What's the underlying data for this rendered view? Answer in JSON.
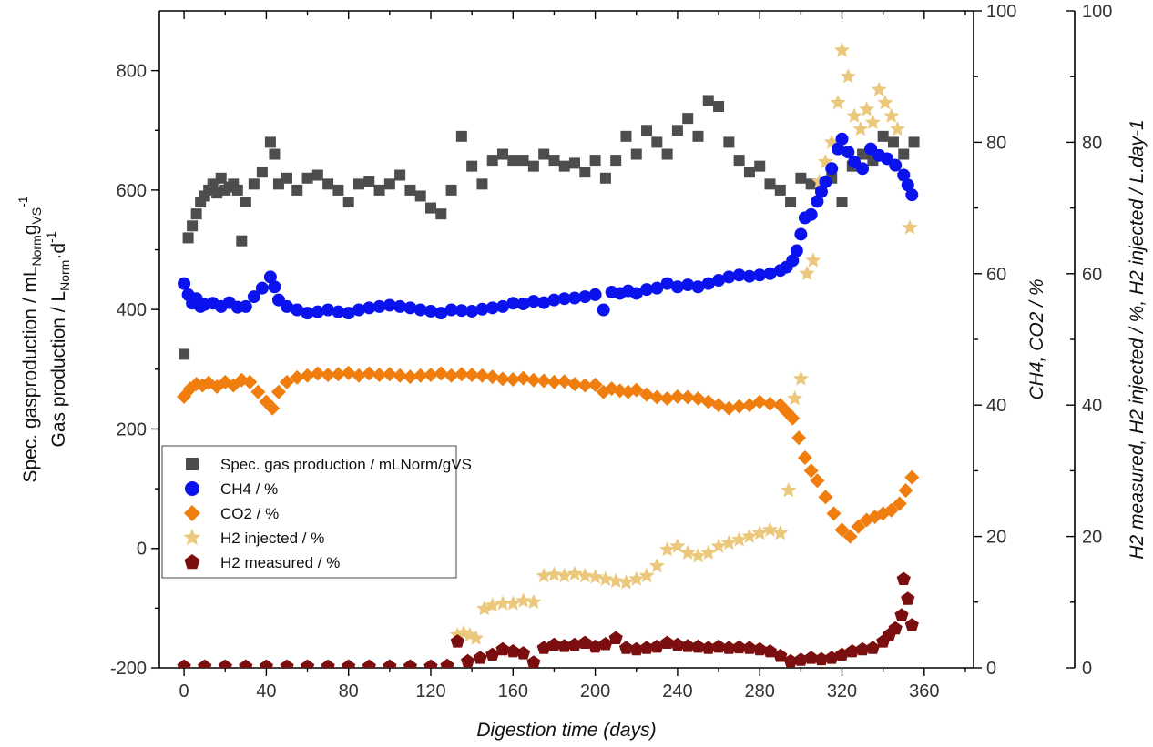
{
  "chart_data": {
    "type": "scatter",
    "xlabel": "Digestion time (days)",
    "x_ticks": [
      "0",
      "40",
      "80",
      "120",
      "160",
      "200",
      "240",
      "280",
      "320",
      "360"
    ],
    "xlim": [
      -12,
      384
    ],
    "left_axis": {
      "label_line1": "Spec. gasproduction  / mL",
      "label_line1_sub": "Norm",
      "label_line1_tail": "g",
      "label_line1_tail_sub": "VS",
      "label_line1_sup": "-1",
      "label_line2": "Gas production / L",
      "label_line2_sub": "Norm",
      "label_line2_tail": "·d",
      "label_line2_sup": "-1",
      "ylim": [
        -200,
        900
      ],
      "ticks": [
        "-200",
        "0",
        "200",
        "400",
        "600",
        "800"
      ]
    },
    "right_axis_1": {
      "label": "CH4,  CO2 / %",
      "ylim": [
        0,
        100
      ],
      "ticks": [
        "0",
        "20",
        "40",
        "60",
        "80",
        "100"
      ]
    },
    "right_axis_2": {
      "label": "H2 measured, H2 injected / %, H2 injected / L.day-1",
      "ylim": [
        0,
        100
      ],
      "ticks": [
        "0",
        "20",
        "40",
        "60",
        "80",
        "100"
      ]
    },
    "legend_position": "lower-left",
    "series": [
      {
        "name": "Spec. gas production / mLNorm/gVS",
        "axis": "left",
        "color": "#4d4d4d",
        "marker": "square",
        "x": [
          0,
          2,
          4,
          6,
          8,
          10,
          12,
          14,
          16,
          18,
          20,
          22,
          24,
          26,
          28,
          30,
          34,
          38,
          42,
          44,
          46,
          50,
          55,
          60,
          65,
          70,
          75,
          80,
          85,
          90,
          95,
          100,
          105,
          110,
          115,
          120,
          125,
          130,
          135,
          140,
          145,
          150,
          155,
          160,
          165,
          170,
          175,
          180,
          185,
          190,
          195,
          200,
          205,
          210,
          215,
          220,
          225,
          230,
          235,
          240,
          245,
          250,
          255,
          260,
          265,
          270,
          275,
          280,
          285,
          290,
          295,
          300,
          305,
          310,
          315,
          320,
          325,
          330,
          335,
          340,
          345,
          350,
          355
        ],
        "y": [
          325,
          520,
          540,
          560,
          580,
          590,
          600,
          610,
          595,
          620,
          600,
          605,
          610,
          600,
          515,
          580,
          610,
          630,
          680,
          660,
          610,
          620,
          600,
          620,
          625,
          610,
          600,
          580,
          610,
          615,
          600,
          610,
          625,
          600,
          590,
          570,
          560,
          600,
          690,
          640,
          610,
          650,
          660,
          650,
          650,
          640,
          660,
          650,
          640,
          645,
          630,
          650,
          620,
          650,
          690,
          660,
          700,
          680,
          660,
          700,
          720,
          690,
          750,
          740,
          680,
          650,
          630,
          640,
          610,
          600,
          580,
          620,
          610,
          600,
          620,
          580,
          640,
          660,
          650,
          690,
          680,
          660,
          680
        ]
      },
      {
        "name": "CH4 / %",
        "axis": "right1",
        "color": "#0a12ee",
        "marker": "circle",
        "x": [
          0,
          2,
          4,
          6,
          8,
          10,
          14,
          18,
          22,
          26,
          30,
          34,
          38,
          42,
          44,
          46,
          50,
          55,
          60,
          65,
          70,
          75,
          80,
          85,
          90,
          95,
          100,
          105,
          110,
          115,
          120,
          125,
          130,
          135,
          140,
          145,
          150,
          155,
          160,
          165,
          170,
          175,
          180,
          185,
          190,
          195,
          200,
          204,
          208,
          212,
          216,
          220,
          225,
          230,
          235,
          240,
          245,
          250,
          255,
          260,
          265,
          270,
          275,
          280,
          285,
          290,
          293,
          296,
          298,
          300,
          302,
          305,
          308,
          310,
          312,
          315,
          318,
          320,
          323,
          326,
          330,
          334,
          338,
          342,
          346,
          350,
          352,
          354
        ],
        "y": [
          58.5,
          56.8,
          55.5,
          56.2,
          55.0,
          55.3,
          55.5,
          55.0,
          55.6,
          54.9,
          55.0,
          56.5,
          57.8,
          59.5,
          58.0,
          56.0,
          55.0,
          54.5,
          54.0,
          54.2,
          54.5,
          54.2,
          54.0,
          54.5,
          54.8,
          55.0,
          55.2,
          55.0,
          54.8,
          54.5,
          54.3,
          54.0,
          54.5,
          54.4,
          54.3,
          54.6,
          54.8,
          55.0,
          55.5,
          55.4,
          55.8,
          55.6,
          56.0,
          56.2,
          56.3,
          56.5,
          56.8,
          54.5,
          57.2,
          57.0,
          57.4,
          57.0,
          57.6,
          57.8,
          58.5,
          58.0,
          58.3,
          58.0,
          58.5,
          59.0,
          59.5,
          59.8,
          59.6,
          59.8,
          60.0,
          60.5,
          61.0,
          62.0,
          63.5,
          66.0,
          68.5,
          69.0,
          71.0,
          72.5,
          74.0,
          76.0,
          79.0,
          80.5,
          78.5,
          77.0,
          76.0,
          79.0,
          78.0,
          77.5,
          76.5,
          75.0,
          73.5,
          72.0
        ]
      },
      {
        "name": "CO2 / %",
        "axis": "right1",
        "color": "#f07e0f",
        "marker": "diamond",
        "x": [
          0,
          3,
          6,
          9,
          12,
          16,
          20,
          24,
          28,
          32,
          36,
          40,
          43,
          46,
          50,
          55,
          60,
          65,
          70,
          75,
          80,
          85,
          90,
          95,
          100,
          105,
          110,
          115,
          120,
          125,
          130,
          135,
          140,
          145,
          150,
          155,
          160,
          165,
          170,
          175,
          180,
          185,
          190,
          195,
          200,
          204,
          208,
          212,
          216,
          220,
          225,
          230,
          235,
          240,
          245,
          250,
          255,
          260,
          265,
          270,
          275,
          280,
          285,
          290,
          293,
          296,
          299,
          302,
          305,
          308,
          312,
          316,
          320,
          324,
          328,
          332,
          336,
          340,
          344,
          348,
          351,
          354
        ],
        "y": [
          41.3,
          42.5,
          43.2,
          43.0,
          43.4,
          42.8,
          43.5,
          43.0,
          43.8,
          43.5,
          42.0,
          40.5,
          39.5,
          42.0,
          43.5,
          44.2,
          44.5,
          44.8,
          44.6,
          44.7,
          44.9,
          44.5,
          44.8,
          44.6,
          44.7,
          44.5,
          44.3,
          44.5,
          44.6,
          44.8,
          44.5,
          44.7,
          44.6,
          44.5,
          44.3,
          44.0,
          43.9,
          44.1,
          43.8,
          43.7,
          43.5,
          43.6,
          43.2,
          43.0,
          43.1,
          42.0,
          42.5,
          42.2,
          42.0,
          42.3,
          41.6,
          41.2,
          41.0,
          41.3,
          41.2,
          41.0,
          40.5,
          40.0,
          39.5,
          39.8,
          40.0,
          40.5,
          40.2,
          40.0,
          39.0,
          38.0,
          35.0,
          32.0,
          30.0,
          28.5,
          26.0,
          23.5,
          21.0,
          20.0,
          21.5,
          22.5,
          23.0,
          23.5,
          24.0,
          25.0,
          27.0,
          29.0
        ]
      },
      {
        "name": "H2 injected / %",
        "axis": "right2",
        "color": "#ebc87b",
        "marker": "star",
        "x": [
          133,
          136,
          139,
          142,
          146,
          150,
          155,
          160,
          165,
          170,
          175,
          180,
          185,
          190,
          195,
          200,
          205,
          210,
          215,
          220,
          225,
          230,
          235,
          240,
          245,
          250,
          255,
          260,
          265,
          270,
          275,
          280,
          285,
          290,
          294,
          297,
          300,
          303,
          306,
          309,
          312,
          315,
          318,
          320,
          323,
          326,
          329,
          332,
          335,
          338,
          341,
          344,
          347,
          350,
          353
        ],
        "y": [
          5.0,
          5.3,
          5.0,
          4.5,
          9.0,
          9.5,
          9.8,
          9.8,
          10.2,
          10.0,
          14.0,
          14.2,
          14.0,
          14.3,
          14.0,
          13.8,
          13.5,
          13.2,
          13.0,
          13.5,
          14.0,
          15.5,
          18.0,
          18.5,
          17.5,
          17.0,
          17.5,
          18.5,
          19.0,
          19.5,
          20.0,
          20.5,
          21.0,
          20.5,
          27.0,
          41.0,
          44.0,
          60.0,
          62.0,
          74.0,
          77.0,
          80.0,
          86.0,
          94.0,
          90.0,
          84.0,
          82.0,
          85.0,
          83.0,
          88.0,
          86.0,
          84.0,
          82.0,
          75.0,
          67.0
        ]
      },
      {
        "name": "H2 measured / %",
        "axis": "right2",
        "color": "#7b0f0f",
        "marker": "pentagon",
        "x": [
          0,
          10,
          20,
          30,
          40,
          50,
          60,
          70,
          80,
          90,
          100,
          110,
          120,
          128,
          133,
          138,
          144,
          150,
          155,
          160,
          165,
          170,
          175,
          180,
          185,
          190,
          195,
          200,
          205,
          210,
          215,
          220,
          225,
          230,
          235,
          240,
          245,
          250,
          255,
          260,
          265,
          270,
          275,
          280,
          285,
          290,
          295,
          300,
          305,
          310,
          315,
          320,
          325,
          330,
          335,
          340,
          343,
          346,
          349,
          350,
          352,
          354
        ],
        "y": [
          0.2,
          0.2,
          0.2,
          0.2,
          0.2,
          0.2,
          0.2,
          0.2,
          0.2,
          0.2,
          0.2,
          0.2,
          0.2,
          0.3,
          4.0,
          1.0,
          1.5,
          2.0,
          2.8,
          2.5,
          2.2,
          0.8,
          3.0,
          3.5,
          3.3,
          3.5,
          3.8,
          3.2,
          3.6,
          4.5,
          3.0,
          2.8,
          3.0,
          3.2,
          3.8,
          3.5,
          3.3,
          3.2,
          3.0,
          3.2,
          3.0,
          3.1,
          3.0,
          2.8,
          2.5,
          1.8,
          1.0,
          1.2,
          1.5,
          1.3,
          1.5,
          2.0,
          2.5,
          2.8,
          3.0,
          4.0,
          5.0,
          6.0,
          8.0,
          13.5,
          10.5,
          6.5
        ]
      }
    ]
  }
}
